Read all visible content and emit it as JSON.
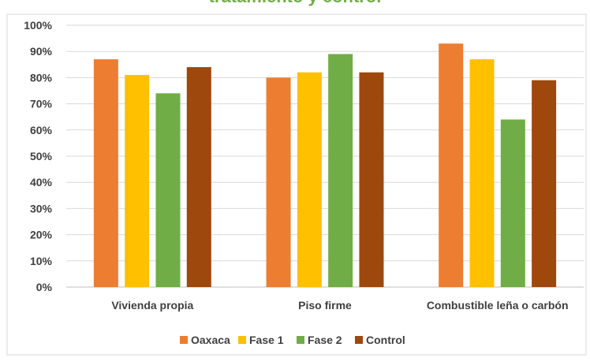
{
  "chart_data": {
    "type": "bar",
    "title": "tratamiento y control",
    "categories": [
      "Vivienda propia",
      "Piso firme",
      "Combustible leña o carbón"
    ],
    "series": [
      {
        "name": "Oaxaca",
        "color": "#ED7D31",
        "values": [
          87,
          80,
          93
        ]
      },
      {
        "name": "Fase 1",
        "color": "#FFC000",
        "values": [
          81,
          82,
          87
        ]
      },
      {
        "name": "Fase 2",
        "color": "#70AD47",
        "values": [
          74,
          89,
          64
        ]
      },
      {
        "name": "Control",
        "color": "#9E480E",
        "values": [
          84,
          82,
          79
        ]
      }
    ],
    "ylim": [
      0,
      100
    ],
    "y_ticks": [
      "0%",
      "10%",
      "20%",
      "30%",
      "40%",
      "50%",
      "60%",
      "70%",
      "80%",
      "90%",
      "100%"
    ],
    "grid": true,
    "legend_position": "bottom",
    "xlabel": "",
    "ylabel": ""
  }
}
